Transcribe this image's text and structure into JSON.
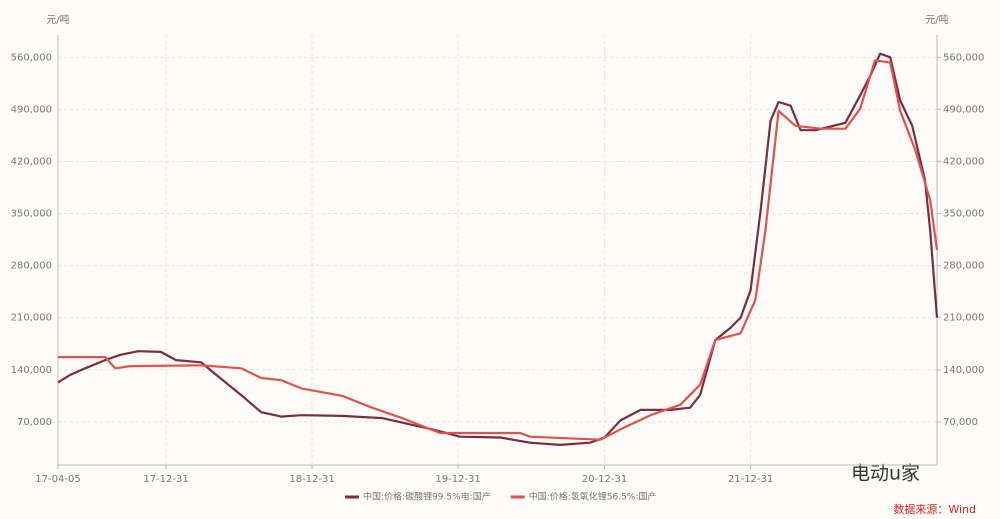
{
  "chart_data": {
    "type": "line",
    "y_label": "元/吨",
    "y2_label": "元/吨",
    "xlim": [
      "17-04-05",
      "23-04-11"
    ],
    "xticks": [
      "17-04-05",
      "17-12-31",
      "18-12-31",
      "19-12-31",
      "20-12-31",
      "21-12-31"
    ],
    "ylim": [
      12000,
      590000
    ],
    "yticks": [
      {
        "value": 70000,
        "label": "70,000"
      },
      {
        "value": 140000,
        "label": "140,000"
      },
      {
        "value": 210000,
        "label": "210,000"
      },
      {
        "value": 280000,
        "label": "280,000"
      },
      {
        "value": 350000,
        "label": "350,000"
      },
      {
        "value": 420000,
        "label": "420,000"
      },
      {
        "value": 490000,
        "label": "490,000"
      },
      {
        "value": 560000,
        "label": "560,000"
      }
    ],
    "y2lim": [
      12000,
      590000
    ],
    "y2ticks": [
      {
        "value": 70000,
        "label": "70,000"
      },
      {
        "value": 140000,
        "label": "140,000"
      },
      {
        "value": 210000,
        "label": "210,000"
      },
      {
        "value": 280000,
        "label": "280,000"
      },
      {
        "value": 350000,
        "label": "350,000"
      },
      {
        "value": 420000,
        "label": "420,000"
      },
      {
        "value": 490000,
        "label": "490,000"
      },
      {
        "value": 560000,
        "label": "560,000"
      }
    ],
    "grid": true,
    "legend": "bottom",
    "series": [
      {
        "name": "中国:价格:碳酸锂99.5%电:国产",
        "color": "#7b2c3e",
        "x": [
          "17-04-05",
          "17-05-05",
          "17-06-12",
          "17-08-01",
          "17-09-07",
          "17-10-22",
          "17-12-18",
          "18-01-25",
          "18-03-29",
          "18-05-06",
          "18-07-07",
          "18-08-26",
          "18-10-15",
          "18-12-04",
          "19-03-16",
          "19-06-24",
          "19-08-13",
          "19-10-27",
          "20-01-05",
          "20-04-14",
          "20-06-28",
          "20-09-11",
          "20-11-25",
          "20-12-31",
          "21-02-09",
          "21-03-31",
          "21-06-14",
          "21-08-02",
          "21-08-27",
          "21-10-04",
          "21-11-10",
          "21-12-06",
          "21-12-31",
          "22-01-25",
          "22-02-19",
          "22-03-11",
          "22-04-10",
          "22-05-05",
          "22-06-11",
          "22-07-19",
          "22-08-25",
          "22-10-01",
          "22-10-26",
          "22-11-20",
          "22-12-15",
          "23-01-09",
          "23-02-08",
          "23-03-12",
          "23-03-25",
          "23-04-11"
        ],
        "values": [
          123000,
          133000,
          142000,
          153000,
          160000,
          165000,
          164000,
          153000,
          150000,
          133000,
          106000,
          83000,
          77000,
          79000,
          78000,
          75000,
          69000,
          60000,
          50000,
          49000,
          42000,
          39000,
          42000,
          49000,
          72000,
          86000,
          86000,
          89000,
          106000,
          180000,
          196000,
          210000,
          247000,
          354000,
          475000,
          500000,
          495000,
          462000,
          462000,
          467000,
          472000,
          509000,
          535000,
          565000,
          560000,
          502000,
          468000,
          395000,
          327000,
          210000
        ]
      },
      {
        "name": "中国:价格:氢氧化锂56.5%:国产",
        "color": "#e0524a",
        "axis": "y2",
        "x": [
          "17-04-05",
          "17-08-01",
          "17-08-26",
          "17-10-04",
          "18-03-29",
          "18-07-07",
          "18-08-26",
          "18-10-15",
          "18-12-04",
          "19-03-16",
          "19-05-30",
          "19-08-13",
          "19-11-16",
          "20-02-24",
          "20-06-03",
          "20-06-28",
          "20-12-21",
          "21-02-09",
          "21-04-25",
          "21-07-09",
          "21-08-27",
          "21-10-04",
          "21-12-06",
          "22-01-12",
          "22-02-06",
          "22-03-11",
          "22-04-22",
          "22-06-24",
          "22-08-25",
          "22-10-01",
          "22-11-07",
          "22-12-15",
          "23-01-09",
          "23-02-16",
          "23-03-25",
          "23-04-11"
        ],
        "values": [
          157000,
          157000,
          142000,
          145000,
          146000,
          142000,
          129000,
          126000,
          115000,
          105000,
          89000,
          75000,
          55000,
          55000,
          55000,
          50000,
          46000,
          60000,
          79000,
          93000,
          120000,
          180000,
          189000,
          234000,
          327000,
          488000,
          468000,
          464000,
          464000,
          491000,
          556000,
          553000,
          488000,
          435000,
          368000,
          301000
        ]
      }
    ],
    "annotations": [
      "电动u家",
      "数据来源：Wind"
    ]
  }
}
